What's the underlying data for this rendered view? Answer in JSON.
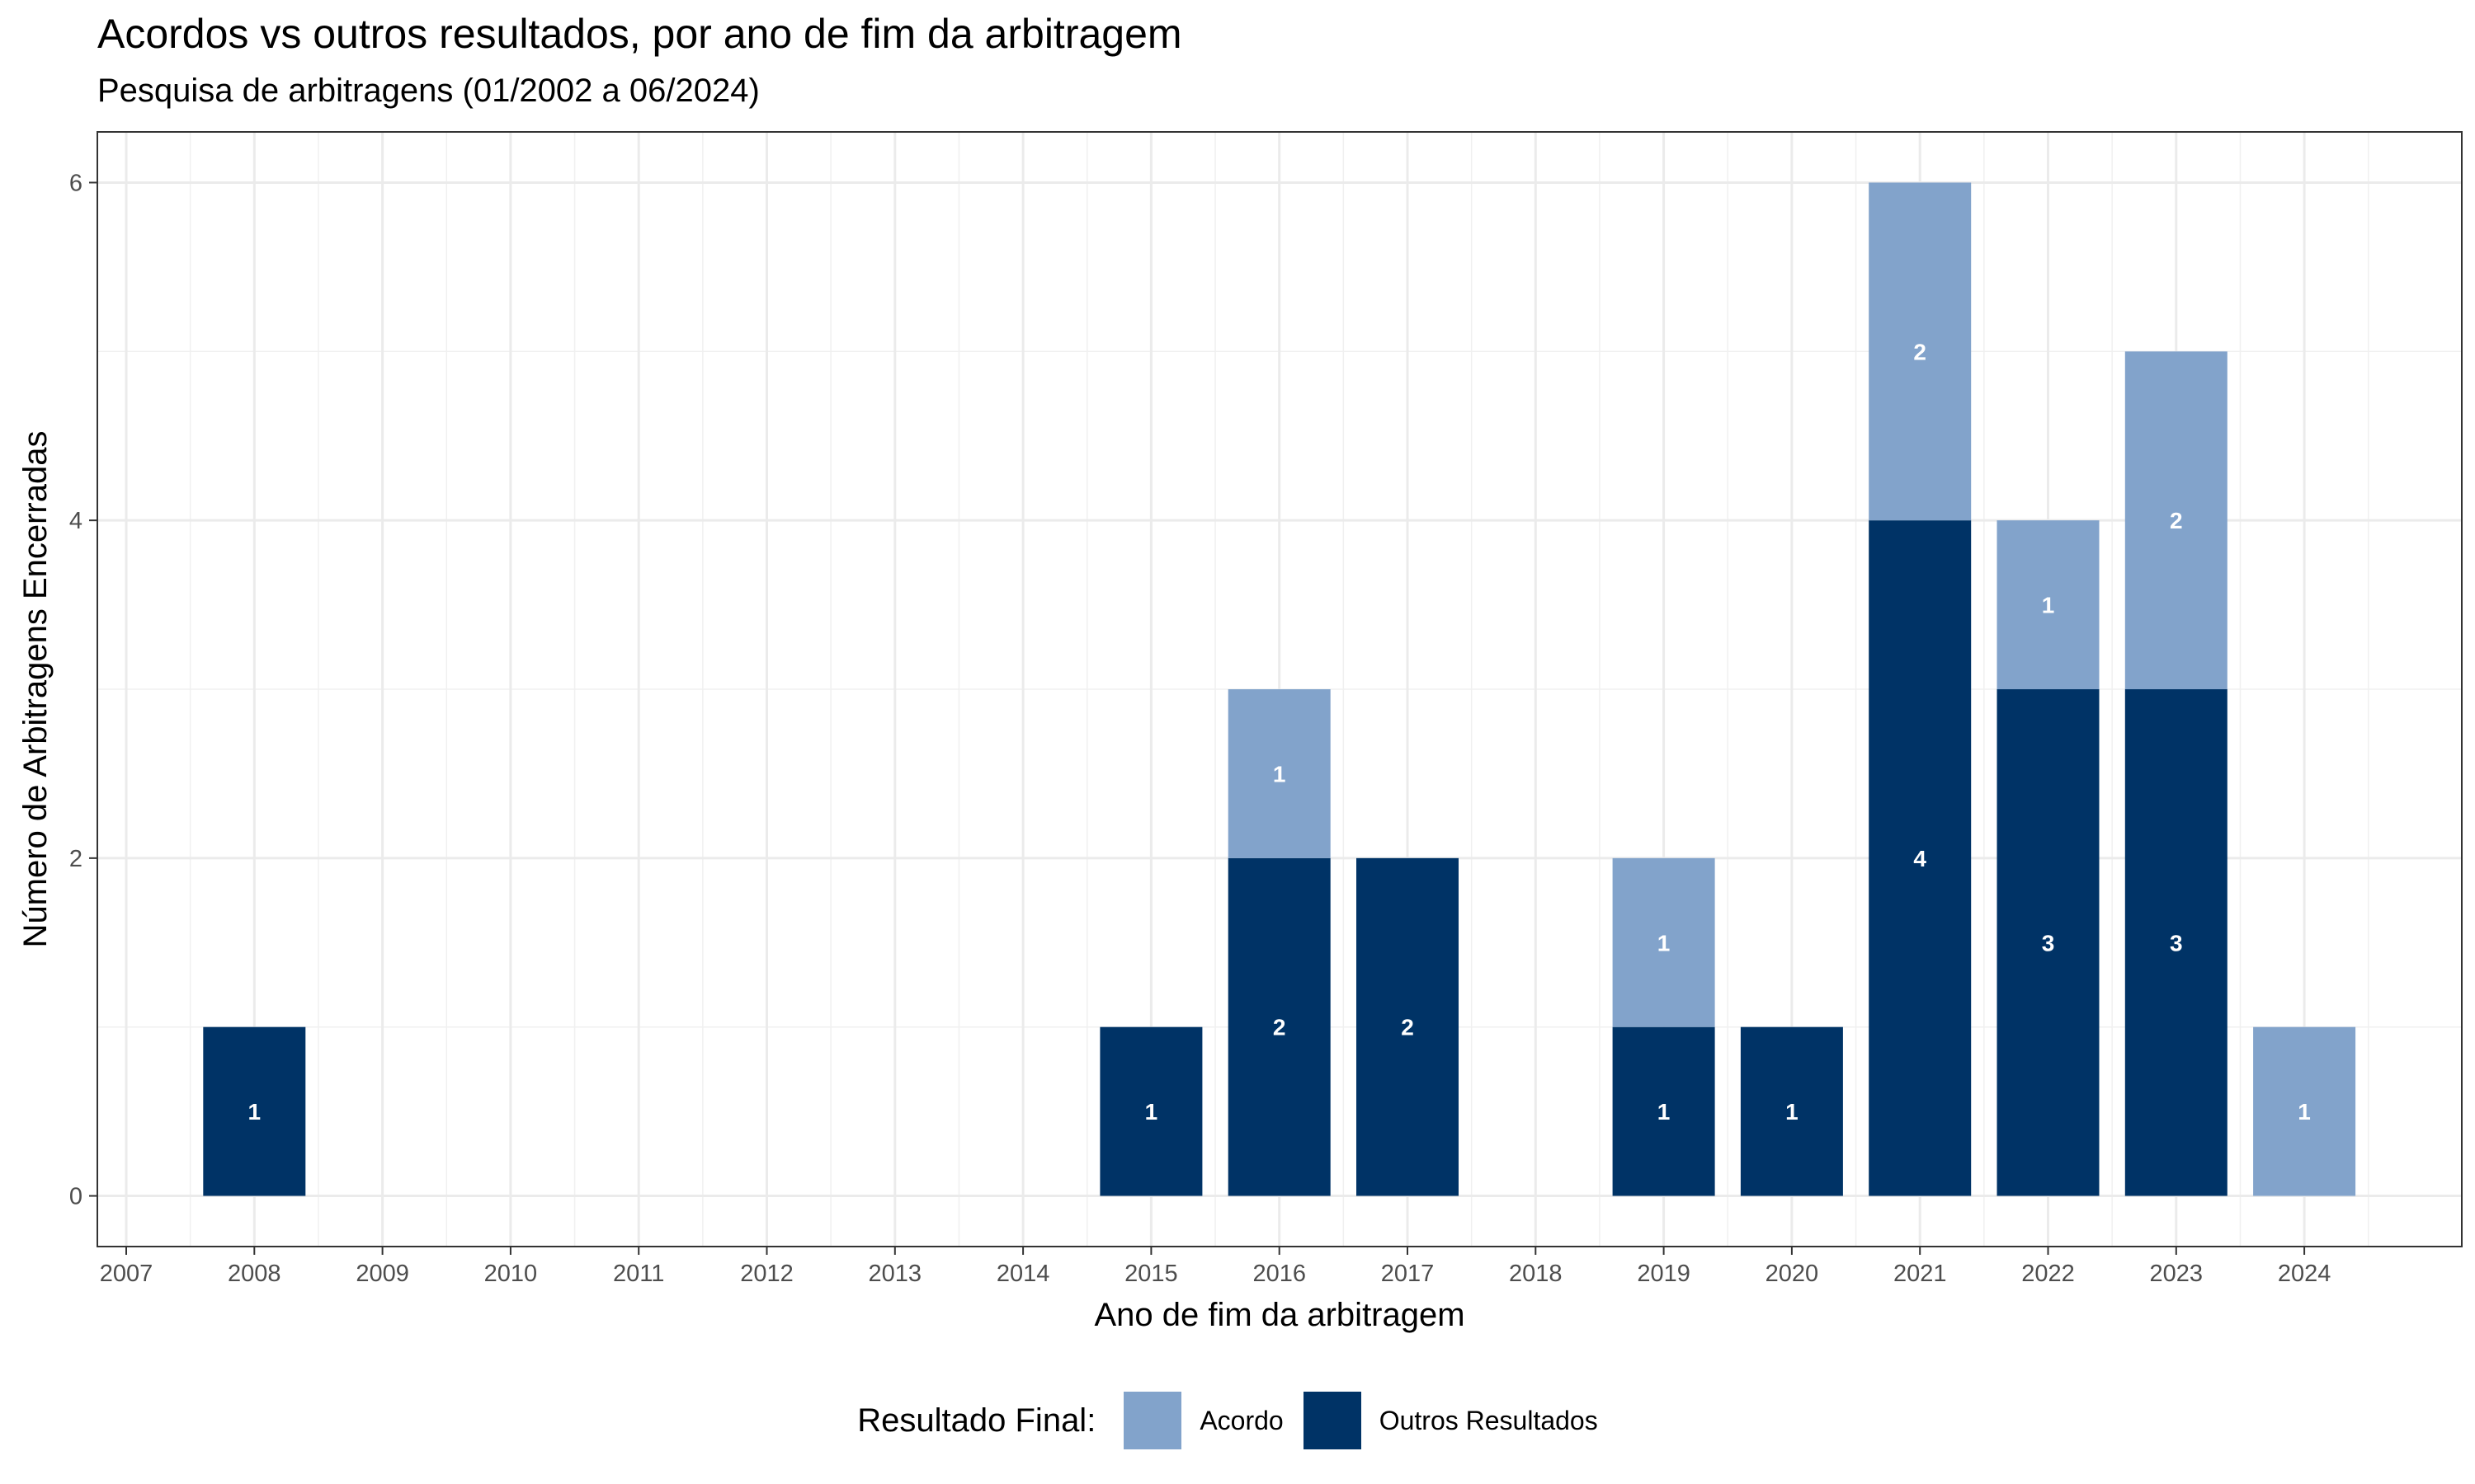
{
  "chart_data": {
    "type": "bar",
    "stacked": true,
    "title": "Acordos vs outros resultados, por ano de fim da arbitragem",
    "subtitle": "Pesquisa de arbitragens (01/2002 a 06/2024)",
    "xlabel": "Ano de fim da arbitragem",
    "ylabel": "Número de Arbitragens Encerradas",
    "x_ticks": [
      "2007",
      "2008",
      "2009",
      "2010",
      "2011",
      "2012",
      "2013",
      "2014",
      "2015",
      "2016",
      "2017",
      "2018",
      "2019",
      "2020",
      "2021",
      "2022",
      "2023",
      "2024"
    ],
    "categories": [
      "2008",
      "2015",
      "2016",
      "2017",
      "2019",
      "2020",
      "2021",
      "2022",
      "2023",
      "2024"
    ],
    "series": [
      {
        "name": "Outros Resultados",
        "color": "#003366",
        "values": [
          1,
          1,
          2,
          2,
          1,
          1,
          4,
          3,
          3,
          0
        ]
      },
      {
        "name": "Acordo",
        "color": "#82A3CB",
        "values": [
          0,
          0,
          1,
          0,
          1,
          0,
          2,
          1,
          2,
          1
        ]
      }
    ],
    "ylim": [
      -0.3,
      6.3
    ],
    "y_ticks": [
      0,
      2,
      4,
      6
    ],
    "grid": true,
    "legend": {
      "title": "Resultado Final:",
      "position": "bottom",
      "order": [
        "Acordo",
        "Outros Resultados"
      ]
    }
  }
}
